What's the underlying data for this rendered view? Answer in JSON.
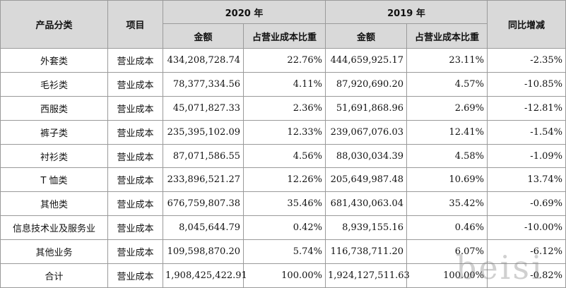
{
  "header": {
    "category": "产品分类",
    "item": "项目",
    "year_current": "2020 年",
    "year_prior": "2019 年",
    "amount": "金额",
    "ratio": "占营业成本比重",
    "yoy": "同比增减"
  },
  "rows": [
    {
      "category": "外套类",
      "item": "营业成本",
      "amount_2020": "434,208,728.74",
      "ratio_2020": "22.76%",
      "amount_2019": "444,659,925.17",
      "ratio_2019": "23.11%",
      "yoy": "-2.35%"
    },
    {
      "category": "毛衫类",
      "item": "营业成本",
      "amount_2020": "78,377,334.56",
      "ratio_2020": "4.11%",
      "amount_2019": "87,920,690.20",
      "ratio_2019": "4.57%",
      "yoy": "-10.85%"
    },
    {
      "category": "西服类",
      "item": "营业成本",
      "amount_2020": "45,071,827.33",
      "ratio_2020": "2.36%",
      "amount_2019": "51,691,868.96",
      "ratio_2019": "2.69%",
      "yoy": "-12.81%"
    },
    {
      "category": "裤子类",
      "item": "营业成本",
      "amount_2020": "235,395,102.09",
      "ratio_2020": "12.33%",
      "amount_2019": "239,067,076.03",
      "ratio_2019": "12.41%",
      "yoy": "-1.54%"
    },
    {
      "category": "衬衫类",
      "item": "营业成本",
      "amount_2020": "87,071,586.55",
      "ratio_2020": "4.56%",
      "amount_2019": "88,030,034.39",
      "ratio_2019": "4.58%",
      "yoy": "-1.09%"
    },
    {
      "category": "T 恤类",
      "item": "营业成本",
      "amount_2020": "233,896,521.27",
      "ratio_2020": "12.26%",
      "amount_2019": "205,649,987.48",
      "ratio_2019": "10.69%",
      "yoy": "13.74%"
    },
    {
      "category": "其他类",
      "item": "营业成本",
      "amount_2020": "676,759,807.38",
      "ratio_2020": "35.46%",
      "amount_2019": "681,430,063.04",
      "ratio_2019": "35.42%",
      "yoy": "-0.69%"
    },
    {
      "category": "信息技术业及服务业",
      "item": "营业成本",
      "amount_2020": "8,045,644.79",
      "ratio_2020": "0.42%",
      "amount_2019": "8,939,155.16",
      "ratio_2019": "0.46%",
      "yoy": "-10.00%"
    },
    {
      "category": "其他业务",
      "item": "营业成本",
      "amount_2020": "109,598,870.20",
      "ratio_2020": "5.74%",
      "amount_2019": "116,738,711.20",
      "ratio_2019": "6.07%",
      "yoy": "-6.12%"
    },
    {
      "category": "合计",
      "item": "营业成本",
      "amount_2020": "1,908,425,422.91",
      "ratio_2020": "100.00%",
      "amount_2019": "1,924,127,511.63",
      "ratio_2019": "100.00%",
      "yoy": "-0.82%"
    }
  ],
  "watermark": "beisi"
}
